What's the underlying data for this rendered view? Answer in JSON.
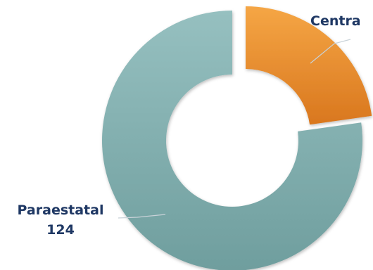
{
  "chart_data": {
    "type": "pie",
    "variant": "exploded-donut",
    "title": "",
    "slices": [
      {
        "name": "Central",
        "value": null,
        "color": "#e8892b",
        "label_text": "Centra",
        "value_text": ""
      },
      {
        "name": "Paraestatal",
        "value": 124,
        "color": "#84b1b1",
        "label_text": "Paraestatal",
        "value_text": "124"
      }
    ],
    "legend": "none"
  }
}
